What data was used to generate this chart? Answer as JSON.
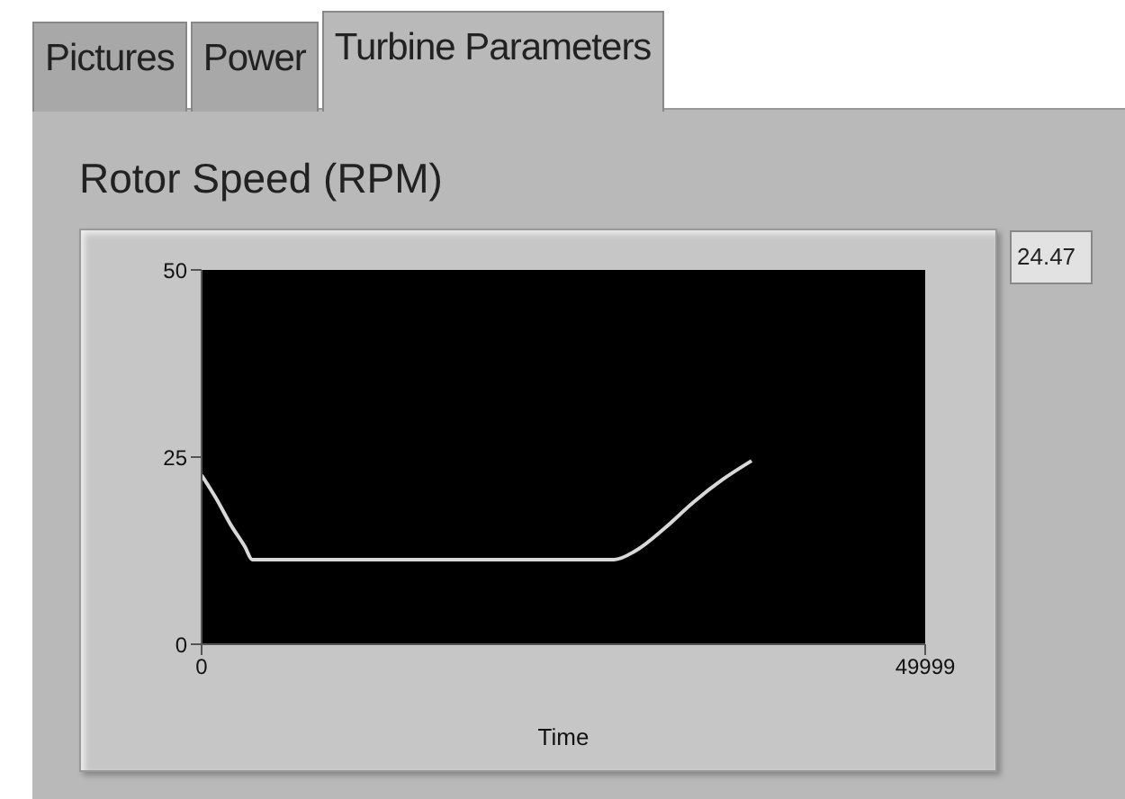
{
  "chart_data": {
    "type": "line",
    "title": "Rotor Speed (RPM)",
    "xlabel": "Time",
    "annotations": [
      "Pictures",
      "Power",
      "Turbine Parameters",
      "24.47"
    ],
    "x": [
      0,
      1000,
      2000,
      3000,
      3500,
      28500,
      30000,
      32000,
      34000,
      36000,
      38000
    ],
    "series": [
      {
        "color": "#d8d8d8",
        "values": [
          22.6,
          19.5,
          16,
          13,
          11.3,
          11.3,
          12.5,
          15.5,
          19,
          22,
          24.5
        ]
      }
    ],
    "xlim": [
      0,
      49999
    ],
    "xticks": [
      0,
      49999
    ],
    "ylim": [
      0,
      50
    ],
    "yticks": [
      0,
      25,
      50
    ],
    "grid": false,
    "legend": false,
    "marker": "none",
    "line_style": "solid"
  }
}
